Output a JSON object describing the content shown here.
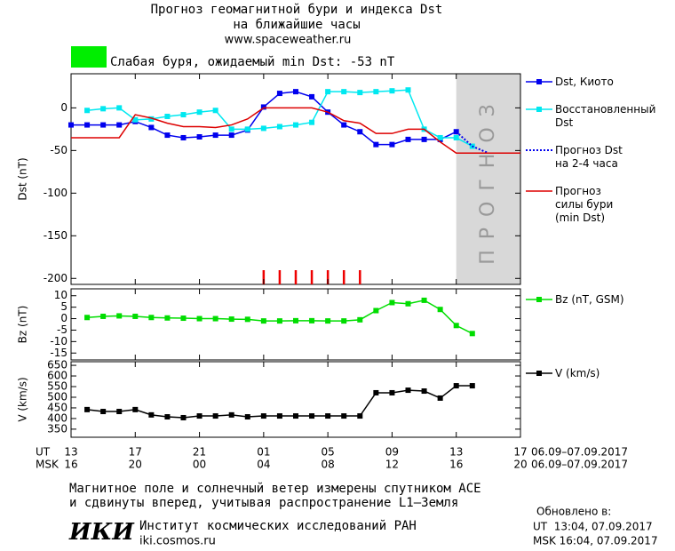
{
  "header": {
    "title": "Прогноз геомагнитной бури и индекса Dst",
    "subtitle": "на ближайшие часы",
    "url": "www.spaceweather.ru",
    "status": "Слабая буря, ожидаемый min Dst: -53 nT",
    "status_color": "#00ee00"
  },
  "chart_data": [
    {
      "type": "line",
      "y_label": "Dst (nT)",
      "xlim": [
        0,
        28
      ],
      "ylim": [
        -207,
        40
      ],
      "yticks": [
        -200,
        -150,
        -100,
        -50,
        0
      ],
      "forecast_span": [
        24,
        28
      ],
      "forecast_label": "ПРОГНОЗ",
      "forecast_color": "#d8d8d8",
      "storm_marks_x": [
        12,
        13,
        14,
        15,
        16,
        17,
        18
      ],
      "storm_marks_color": "#ee0000",
      "series": [
        {
          "name": "Dst, Киото",
          "color": "#0000ee",
          "marker": "square",
          "line_style": "solid",
          "x": [
            0,
            1,
            2,
            3,
            4,
            5,
            6,
            7,
            8,
            9,
            10,
            11,
            12,
            13,
            14,
            15,
            16,
            17,
            18,
            19,
            20,
            21,
            22,
            23,
            24
          ],
          "values": [
            -20,
            -20,
            -20,
            -20,
            -16,
            -23,
            -32,
            -35,
            -34,
            -32,
            -32,
            -26,
            1,
            17,
            19,
            13,
            -5,
            -20,
            -28,
            -43,
            -43,
            -37,
            -37,
            -37,
            -28
          ]
        },
        {
          "name": "Восстановленный\nDst",
          "color": "#00e8f0",
          "marker": "square",
          "line_style": "solid",
          "x": [
            1,
            2,
            3,
            4,
            5,
            6,
            7,
            8,
            9,
            10,
            11,
            12,
            13,
            14,
            15,
            16,
            17,
            18,
            19,
            20,
            21,
            22,
            23,
            24,
            25
          ],
          "values": [
            -3,
            -1,
            0,
            -14,
            -13,
            -10,
            -8,
            -5,
            -3,
            -25,
            -25,
            -24,
            -22,
            -20,
            -17,
            19,
            19,
            18,
            19,
            20,
            21,
            -25,
            -35,
            -35,
            -45
          ]
        },
        {
          "name": "Прогноз Dst\nна 2-4 часа",
          "color": "#0000ee",
          "marker": "none",
          "line_style": "dotted",
          "x": [
            24,
            25,
            26
          ],
          "values": [
            -28,
            -45,
            -53
          ]
        },
        {
          "name": "Прогноз\nсилы бури\n(min Dst)",
          "color": "#dd0000",
          "marker": "none",
          "line_style": "solid",
          "x": [
            0,
            1,
            2,
            3,
            4,
            5,
            6,
            7,
            8,
            9,
            10,
            11,
            12,
            13,
            14,
            15,
            16,
            17,
            18,
            19,
            20,
            21,
            22,
            23,
            24,
            25,
            26,
            27,
            28
          ],
          "values": [
            -35,
            -35,
            -35,
            -35,
            -8,
            -12,
            -18,
            -22,
            -22,
            -23,
            -20,
            -13,
            0,
            0,
            0,
            0,
            -5,
            -15,
            -18,
            -30,
            -30,
            -25,
            -25,
            -40,
            -53,
            -53,
            -53,
            -53,
            -53
          ]
        }
      ]
    },
    {
      "type": "line",
      "y_label": "Bz (nT)",
      "xlim": [
        0,
        28
      ],
      "ylim": [
        -18,
        13
      ],
      "yticks": [
        -15,
        -10,
        -5,
        0,
        5,
        10
      ],
      "series": [
        {
          "name": "Bz (nT, GSM)",
          "color": "#00dd00",
          "marker": "square",
          "line_style": "solid",
          "x": [
            1,
            2,
            3,
            4,
            5,
            6,
            7,
            8,
            9,
            10,
            11,
            12,
            13,
            14,
            15,
            16,
            17,
            18,
            19,
            20,
            21,
            22,
            23,
            24,
            25
          ],
          "values": [
            0.5,
            1,
            1.2,
            1,
            0.5,
            0.3,
            0.2,
            0,
            0,
            -0.2,
            -0.3,
            -1,
            -1,
            -0.9,
            -0.9,
            -1,
            -1,
            -0.5,
            3.5,
            7,
            6.5,
            8,
            4,
            -3,
            -6.5
          ]
        }
      ]
    },
    {
      "type": "line",
      "y_label": "V (km/s)",
      "xlim": [
        0,
        28
      ],
      "ylim": [
        312,
        667
      ],
      "yticks": [
        350,
        400,
        450,
        500,
        550,
        600,
        650
      ],
      "x_label": "UT",
      "x2_label": "MSK",
      "x_range_label": "06.09–07.09.2017",
      "x2_range_label": "06.09–07.09.2017",
      "xticks": [
        {
          "value": 0,
          "label": "13"
        },
        {
          "value": 4,
          "label": "17"
        },
        {
          "value": 8,
          "label": "21"
        },
        {
          "value": 12,
          "label": "01"
        },
        {
          "value": 16,
          "label": "05"
        },
        {
          "value": 20,
          "label": "09"
        },
        {
          "value": 24,
          "label": "13"
        },
        {
          "value": 28,
          "label": "17"
        }
      ],
      "x2ticks": [
        {
          "value": 0,
          "label": "16"
        },
        {
          "value": 4,
          "label": "20"
        },
        {
          "value": 8,
          "label": "00"
        },
        {
          "value": 12,
          "label": "04"
        },
        {
          "value": 16,
          "label": "08"
        },
        {
          "value": 20,
          "label": "12"
        },
        {
          "value": 24,
          "label": "16"
        },
        {
          "value": 28,
          "label": "20"
        }
      ],
      "series": [
        {
          "name": "V (km/s)",
          "color": "#000000",
          "marker": "square",
          "line_style": "solid",
          "x": [
            1,
            2,
            3,
            4,
            5,
            6,
            7,
            8,
            9,
            10,
            11,
            12,
            13,
            14,
            15,
            16,
            17,
            18,
            19,
            20,
            21,
            22,
            23,
            24,
            25
          ],
          "values": [
            442,
            433,
            433,
            442,
            417,
            408,
            404,
            412,
            412,
            417,
            408,
            412,
            412,
            412,
            412,
            412,
            412,
            412,
            521,
            521,
            533,
            529,
            496,
            554,
            554
          ]
        }
      ]
    }
  ],
  "footer": {
    "note_1": "Магнитное поле и солнечный ветер измерены спутником ACE",
    "note_2": "и сдвинуты вперед, учитывая распространение L1–Земля",
    "logo": "ИКИ",
    "institute": "Институт космических исследований РАН",
    "site": "iki.cosmos.ru",
    "updated": "Обновлено в:",
    "updated_ut": "UT  13:04, 07.09.2017",
    "updated_msk": "MSK 16:04, 07.09.2017"
  }
}
